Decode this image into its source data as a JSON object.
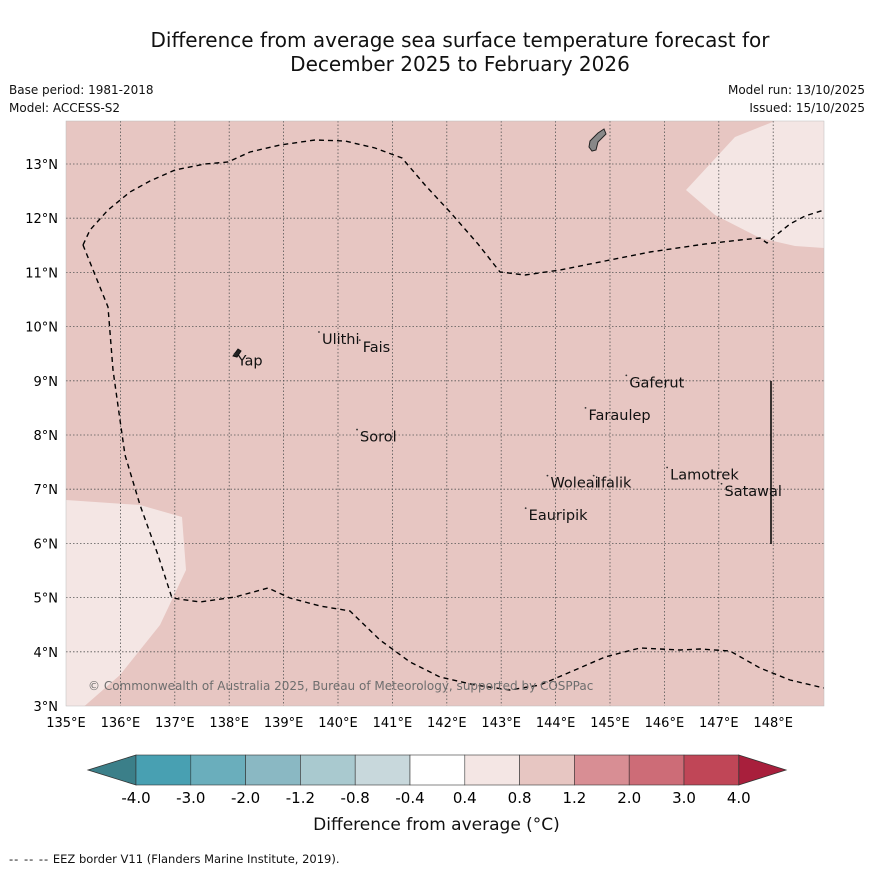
{
  "title_line1": "Difference from average sea surface temperature forecast for",
  "title_line2": "December 2025 to February 2026",
  "meta_left": {
    "base_period": "Base period: 1981-2018",
    "model": "Model: ACCESS-S2"
  },
  "meta_right": {
    "model_run": "Model run: 13/10/2025",
    "issued": "Issued: 15/10/2025"
  },
  "colors": {
    "map_fill": "#e7c6c2",
    "light_patch": "#f4e6e4",
    "land": "#888888"
  },
  "lon_ticks": [
    "135°E",
    "136°E",
    "137°E",
    "138°E",
    "139°E",
    "140°E",
    "141°E",
    "142°E",
    "143°E",
    "144°E",
    "145°E",
    "146°E",
    "147°E",
    "148°E"
  ],
  "lat_ticks": [
    "3°N",
    "4°N",
    "5°N",
    "6°N",
    "7°N",
    "8°N",
    "9°N",
    "10°N",
    "11°N",
    "12°N",
    "13°N"
  ],
  "places": [
    {
      "name": "Yap",
      "lon": 138.1,
      "lat": 9.5
    },
    {
      "name": "Ulithi",
      "lon": 139.65,
      "lat": 9.9
    },
    {
      "name": "Fais",
      "lon": 140.4,
      "lat": 9.75
    },
    {
      "name": "Sorol",
      "lon": 140.35,
      "lat": 8.1
    },
    {
      "name": "Gaferut",
      "lon": 145.3,
      "lat": 9.1
    },
    {
      "name": "Faraulep",
      "lon": 144.55,
      "lat": 8.5
    },
    {
      "name": "Lamotrek",
      "lon": 146.05,
      "lat": 7.4
    },
    {
      "name": "Satawal",
      "lon": 147.05,
      "lat": 7.1
    },
    {
      "name": "Woleai",
      "lon": 143.85,
      "lat": 7.25
    },
    {
      "name": "Ifalik",
      "lon": 144.7,
      "lat": 7.25
    },
    {
      "name": "Eauripik",
      "lon": 143.45,
      "lat": 6.65
    }
  ],
  "copyright": "© Commonwealth of Australia 2025, Bureau of Meteorology, supported by COSPPac",
  "colorbar": {
    "ticks": [
      "-4.0",
      "-3.0",
      "-2.0",
      "-1.2",
      "-0.8",
      "-0.4",
      "0.4",
      "0.8",
      "1.2",
      "2.0",
      "3.0",
      "4.0"
    ],
    "colors": [
      "#3b7f89",
      "#48a0b2",
      "#6aaebc",
      "#8ab8c3",
      "#a9c9cf",
      "#c8d8dc",
      "#ffffff",
      "#f4e6e4",
      "#e7c6c2",
      "#d88e94",
      "#cd6c77",
      "#c04657",
      "#a81f3c"
    ],
    "label": "Difference from average (°C)"
  },
  "footnote_dashes": "-- -- --",
  "footnote_text": "EEZ border V11 (Flanders Marine Institute, 2019)."
}
